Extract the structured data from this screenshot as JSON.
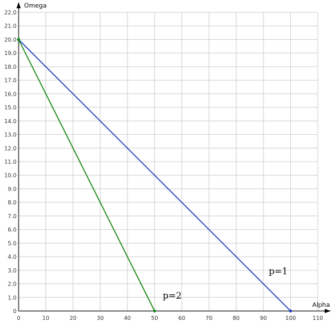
{
  "chart_data": {
    "type": "line",
    "xlabel": "Alpha",
    "ylabel": "Omega",
    "xlim": [
      0,
      110
    ],
    "ylim": [
      0,
      22
    ],
    "x_ticks": [
      0,
      10,
      20,
      30,
      40,
      50,
      60,
      70,
      80,
      90,
      100,
      110
    ],
    "y_ticks": [
      "0",
      "1.0",
      "2.0",
      "3.0",
      "4.0",
      "5.0",
      "6.0",
      "7.0",
      "8.0",
      "9.0",
      "10.0",
      "11.0",
      "12.0",
      "13.0",
      "14.0",
      "15.0",
      "16.0",
      "17.0",
      "18.0",
      "19.0",
      "20.0",
      "21.0",
      "22.0"
    ],
    "grid": true,
    "series": [
      {
        "name": "p=1",
        "color": "#2344c4",
        "points": [
          [
            0,
            20
          ],
          [
            100,
            0
          ]
        ],
        "label_anchor": [
          92,
          2.7
        ]
      },
      {
        "name": "p=2",
        "color": "#1b8a1b",
        "points": [
          [
            0,
            20
          ],
          [
            50,
            0
          ]
        ],
        "label_anchor": [
          53,
          0.9
        ]
      }
    ]
  }
}
